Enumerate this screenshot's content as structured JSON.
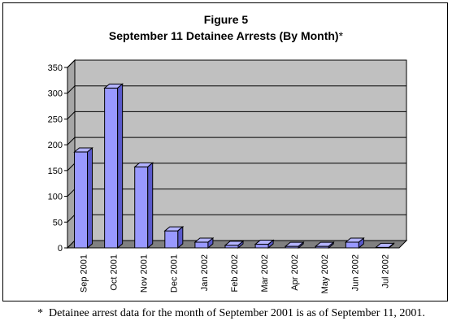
{
  "chart_data": {
    "type": "bar",
    "figure_label": "Figure 5",
    "title": "September 11 Detainee Arrests (By Month)",
    "title_suffix": "*",
    "categories": [
      "Sep 2001",
      "Oct 2001",
      "Nov 2001",
      "Dec 2001",
      "Jan 2002",
      "Feb 2002",
      "Mar 2002",
      "Apr 2002",
      "May 2002",
      "Jun 2002",
      "Jul 2002"
    ],
    "values": [
      186,
      310,
      157,
      33,
      11,
      5,
      7,
      3,
      3,
      11,
      1
    ],
    "ylim": [
      0,
      350
    ],
    "yticks": [
      0,
      50,
      100,
      150,
      200,
      250,
      300,
      350
    ],
    "grid": true,
    "legend": "none",
    "colors": {
      "bar_front": "#9999ff",
      "bar_top": "#b3b3ff",
      "bar_side": "#5a5acc",
      "wall": "#c0c0c0",
      "floor": "#808080"
    }
  },
  "footnote": {
    "mark": "*",
    "text": "Detainee arrest data for the month of September 2001 is as of September 11, 2001."
  }
}
